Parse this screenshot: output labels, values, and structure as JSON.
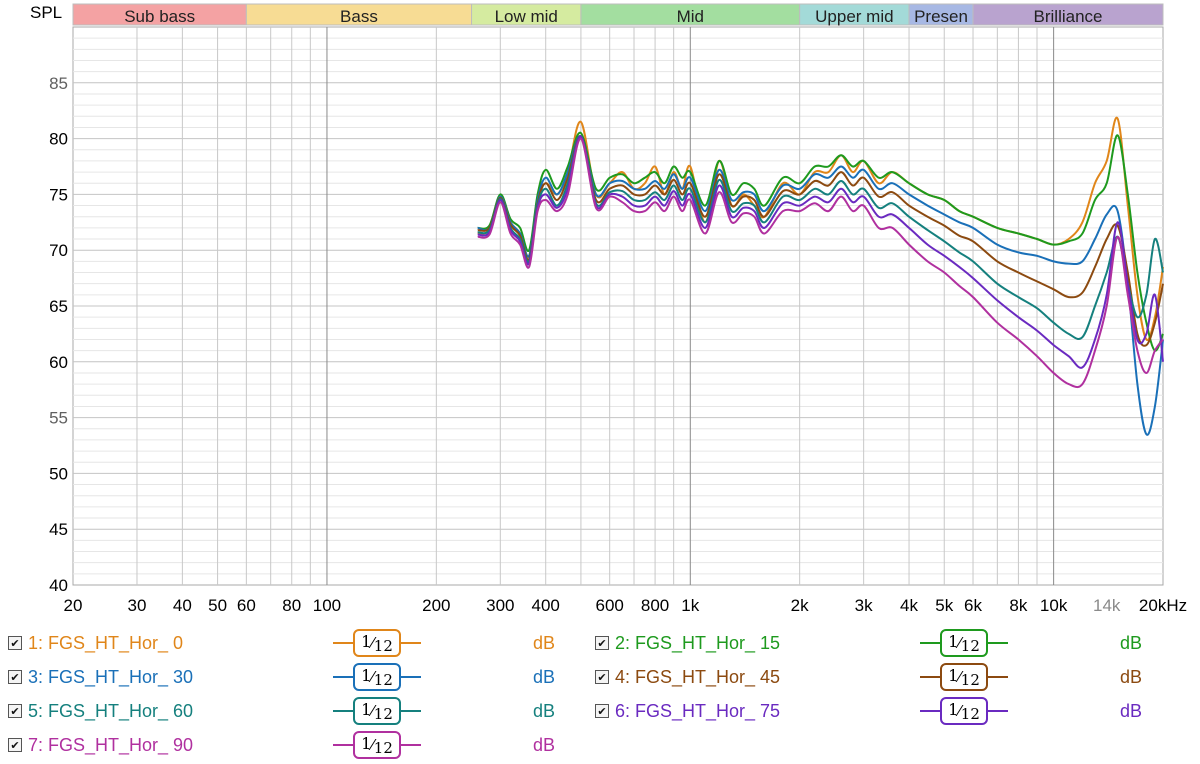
{
  "chart_data": {
    "type": "line",
    "ylabel": "SPL",
    "x_unit": "Hz",
    "xscale": "log",
    "xlim": [
      20,
      20000
    ],
    "ylim": [
      40,
      90
    ],
    "grid": true,
    "yticks": [
      40,
      45,
      50,
      55,
      60,
      65,
      70,
      75,
      80,
      85
    ],
    "xticks": [
      {
        "value": 20,
        "label": "20"
      },
      {
        "value": 30,
        "label": "30"
      },
      {
        "value": 40,
        "label": "40"
      },
      {
        "value": 50,
        "label": "50"
      },
      {
        "value": 60,
        "label": "60"
      },
      {
        "value": 80,
        "label": "80"
      },
      {
        "value": 100,
        "label": "100"
      },
      {
        "value": 200,
        "label": "200"
      },
      {
        "value": 300,
        "label": "300"
      },
      {
        "value": 400,
        "label": "400"
      },
      {
        "value": 600,
        "label": "600"
      },
      {
        "value": 800,
        "label": "800"
      },
      {
        "value": 1000,
        "label": "1k"
      },
      {
        "value": 2000,
        "label": "2k"
      },
      {
        "value": 3000,
        "label": "3k"
      },
      {
        "value": 4000,
        "label": "4k"
      },
      {
        "value": 5000,
        "label": "5k"
      },
      {
        "value": 6000,
        "label": "6k"
      },
      {
        "value": 8000,
        "label": "8k"
      },
      {
        "value": 10000,
        "label": "10k"
      },
      {
        "value": 14000,
        "label": "14k",
        "muted": true
      },
      {
        "value": 20000,
        "label": "20kHz"
      }
    ],
    "bands": [
      {
        "name": "Sub bass",
        "from": 20,
        "to": 60,
        "color": "#f4a2a3"
      },
      {
        "name": "Bass",
        "from": 60,
        "to": 250,
        "color": "#f7dc94"
      },
      {
        "name": "Low mid",
        "from": 250,
        "to": 500,
        "color": "#d5eba0"
      },
      {
        "name": "Mid",
        "from": 500,
        "to": 2000,
        "color": "#a3dea0"
      },
      {
        "name": "Upper mid",
        "from": 2000,
        "to": 4000,
        "color": "#a3dad8"
      },
      {
        "name": "Presen",
        "from": 4000,
        "to": 6000,
        "color": "#a7b8e4"
      },
      {
        "name": "Brilliance",
        "from": 6000,
        "to": 20000,
        "color": "#b9a3cf"
      }
    ],
    "x": [
      260,
      280,
      300,
      320,
      340,
      360,
      380,
      400,
      430,
      460,
      500,
      550,
      600,
      650,
      700,
      750,
      800,
      850,
      900,
      950,
      1000,
      1100,
      1200,
      1300,
      1400,
      1500,
      1600,
      1800,
      2000,
      2200,
      2400,
      2600,
      2800,
      3000,
      3300,
      3600,
      4000,
      4500,
      5000,
      5500,
      6000,
      7000,
      8000,
      9000,
      10000,
      11000,
      12000,
      13000,
      14000,
      15000,
      16000,
      17000,
      18000,
      19000,
      20000
    ],
    "series": [
      {
        "name": "FGS_HT_Hor_ 0",
        "color": "#e0861a",
        "values": [
          71.5,
          71.8,
          74.5,
          72.5,
          71.5,
          69.5,
          74.5,
          76,
          75,
          77,
          81.5,
          75,
          76,
          77,
          75.5,
          76,
          77.5,
          75,
          77,
          75.5,
          77.5,
          72.5,
          78,
          74,
          75,
          74,
          73,
          76,
          75,
          77,
          77,
          78.5,
          77,
          78,
          76,
          77,
          76,
          75,
          74.5,
          73.5,
          73,
          72,
          71.5,
          71,
          70.5,
          71,
          72.5,
          76,
          78,
          81.8,
          74,
          66,
          62,
          64,
          68.5
        ]
      },
      {
        "name": "FGS_HT_Hor_ 15",
        "color": "#1e9a1e",
        "values": [
          72,
          72.2,
          75,
          72.8,
          72,
          70,
          75,
          77.2,
          75.5,
          77.5,
          80.5,
          75.5,
          76.5,
          76.8,
          76,
          76.5,
          77,
          76,
          77.5,
          76.5,
          77,
          74,
          78,
          75,
          76,
          75.5,
          74,
          76.5,
          76,
          77.5,
          77.5,
          78.5,
          77.5,
          78,
          76.5,
          77,
          76,
          75,
          74.5,
          73.5,
          73,
          72,
          71.5,
          71,
          70.5,
          70.8,
          71.5,
          74.5,
          76,
          80.3,
          75,
          68,
          63.5,
          61,
          62.5
        ]
      },
      {
        "name": "FGS_HT_Hor_ 30",
        "color": "#1a70b8",
        "values": [
          72,
          72,
          74.8,
          72.5,
          71.5,
          69.5,
          74.5,
          76.5,
          75,
          77,
          80.2,
          75,
          76,
          76.2,
          75.5,
          75.5,
          76.2,
          75.5,
          76.8,
          75.5,
          76.5,
          73.5,
          77.2,
          74.5,
          75.2,
          75,
          73.5,
          75.8,
          75.5,
          76.8,
          76.5,
          77.5,
          76.5,
          77.2,
          75.5,
          76,
          75,
          74,
          73.2,
          72.5,
          72,
          70.5,
          69.8,
          69.5,
          69,
          68.8,
          69,
          71,
          73.2,
          73.5,
          67,
          58,
          53.5,
          56,
          62
        ]
      },
      {
        "name": "FGS_HT_Hor_ 45",
        "color": "#8c4a10",
        "values": [
          71.8,
          72,
          74.7,
          72.3,
          71.3,
          69.2,
          74.2,
          76,
          74.5,
          76.5,
          80.2,
          74.5,
          75.5,
          75.8,
          75,
          75,
          75.8,
          75,
          76.3,
          75,
          76,
          73,
          76.8,
          74,
          74.8,
          74.5,
          73,
          75.3,
          75,
          76.2,
          75.8,
          77,
          75.8,
          76.5,
          74.8,
          75.2,
          74,
          73,
          72.2,
          71.3,
          70.8,
          69,
          68,
          67.2,
          66.5,
          65.8,
          66.2,
          68.5,
          71,
          72.2,
          68,
          62.5,
          61.5,
          63.5,
          67
        ]
      },
      {
        "name": "FGS_HT_Hor_ 60",
        "color": "#15807e",
        "values": [
          71.6,
          71.8,
          74.6,
          72,
          71,
          69,
          74,
          75.5,
          74,
          76,
          80.2,
          74.2,
          75.2,
          75.3,
          74.5,
          74.5,
          75.2,
          74.5,
          75.8,
          74.5,
          75.5,
          72.5,
          76.3,
          73.5,
          74.2,
          74,
          72.5,
          74.8,
          74.5,
          75.5,
          75,
          76.2,
          75,
          75.5,
          73.8,
          74.2,
          73,
          71.8,
          70.8,
          69.8,
          69,
          67,
          65.8,
          64.8,
          63.5,
          62.5,
          62.2,
          65,
          68,
          71.2,
          67,
          64,
          66,
          71,
          68
        ]
      },
      {
        "name": "FGS_HT_Hor_ 75",
        "color": "#6a2ac0",
        "values": [
          71.4,
          71.6,
          74.5,
          71.8,
          70.8,
          68.8,
          73.8,
          75,
          73.8,
          75.5,
          80.2,
          74,
          75,
          74.8,
          74,
          74,
          74.8,
          74,
          75.3,
          74,
          75,
          72,
          75.8,
          73,
          73.8,
          73.5,
          72,
          74.2,
          74,
          74.8,
          74.3,
          75.5,
          74.3,
          74.8,
          73,
          73.2,
          72,
          70.5,
          69.5,
          68.5,
          67.5,
          65.5,
          64,
          62.8,
          61.5,
          60.5,
          59.5,
          62,
          66,
          72.5,
          67,
          62,
          62.5,
          66,
          60
        ]
      },
      {
        "name": "FGS_HT_Hor_ 90",
        "color": "#b0309f",
        "values": [
          71.2,
          71.4,
          74.3,
          71.5,
          70.5,
          68.5,
          73.5,
          74.5,
          73.5,
          75,
          80,
          73.8,
          74.8,
          74.3,
          73.5,
          73.5,
          74.3,
          73.5,
          74.8,
          73.5,
          74.5,
          71.5,
          75.2,
          72.5,
          73.3,
          73,
          71.5,
          73.5,
          73.5,
          74.2,
          73.5,
          74.8,
          73.5,
          74,
          72,
          72,
          70.5,
          69,
          68,
          66.8,
          65.8,
          63.5,
          62,
          60.5,
          59,
          58,
          58,
          61,
          65,
          71.2,
          66,
          61,
          59,
          61,
          62
        ]
      }
    ]
  },
  "legend": [
    {
      "index": "1",
      "name": "FGS_HT_Hor_ 0",
      "checked": true,
      "smoothing_num": "1",
      "smoothing_den": "12",
      "unit": "dB"
    },
    {
      "index": "2",
      "name": "FGS_HT_Hor_ 15",
      "checked": true,
      "smoothing_num": "1",
      "smoothing_den": "12",
      "unit": "dB"
    },
    {
      "index": "3",
      "name": "FGS_HT_Hor_ 30",
      "checked": true,
      "smoothing_num": "1",
      "smoothing_den": "12",
      "unit": "dB"
    },
    {
      "index": "4",
      "name": "FGS_HT_Hor_ 45",
      "checked": true,
      "smoothing_num": "1",
      "smoothing_den": "12",
      "unit": "dB"
    },
    {
      "index": "5",
      "name": "FGS_HT_Hor_ 60",
      "checked": true,
      "smoothing_num": "1",
      "smoothing_den": "12",
      "unit": "dB"
    },
    {
      "index": "6",
      "name": "FGS_HT_Hor_ 75",
      "checked": true,
      "smoothing_num": "1",
      "smoothing_den": "12",
      "unit": "dB"
    },
    {
      "index": "7",
      "name": "FGS_HT_Hor_ 90",
      "checked": true,
      "smoothing_num": "1",
      "smoothing_den": "12",
      "unit": "dB"
    }
  ]
}
